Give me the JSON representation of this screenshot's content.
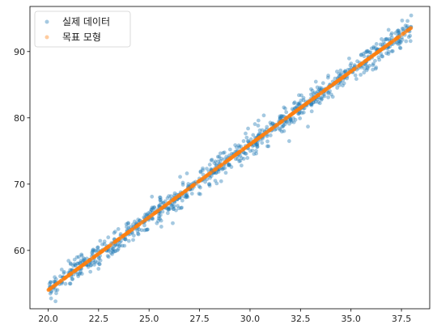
{
  "chart_data": {
    "type": "scatter",
    "title": "",
    "xlabel": "",
    "ylabel": "",
    "xlim": [
      19.1,
      38.9
    ],
    "ylim": [
      51.2,
      96.8
    ],
    "xticks": [
      "20.0",
      "22.5",
      "25.0",
      "27.5",
      "30.0",
      "32.5",
      "35.0",
      "37.5"
    ],
    "xtick_values": [
      20.0,
      22.5,
      25.0,
      27.5,
      30.0,
      32.5,
      35.0,
      37.5
    ],
    "yticks": [
      "60",
      "70",
      "80",
      "90"
    ],
    "ytick_values": [
      60,
      70,
      80,
      90
    ],
    "grid": false,
    "legend_position": "top-left",
    "colors": {
      "actual": "#1f77b4",
      "target": "#ff7f0e"
    },
    "series": [
      {
        "name": "실제 데이터",
        "marker": "circle",
        "alpha": 0.4,
        "description_x_range": [
          20.0,
          38.0
        ],
        "n_points": 900,
        "points_approx_line": {
          "slope": 2.2,
          "intercept": 10.0
        },
        "noise_sd": 0.9
      },
      {
        "name": "목표 모형",
        "marker": "circle",
        "alpha": 0.4,
        "description_x_range": [
          20.0,
          38.0
        ],
        "n_points": 900,
        "line": {
          "slope": 2.2,
          "intercept": 10.0
        }
      }
    ]
  }
}
